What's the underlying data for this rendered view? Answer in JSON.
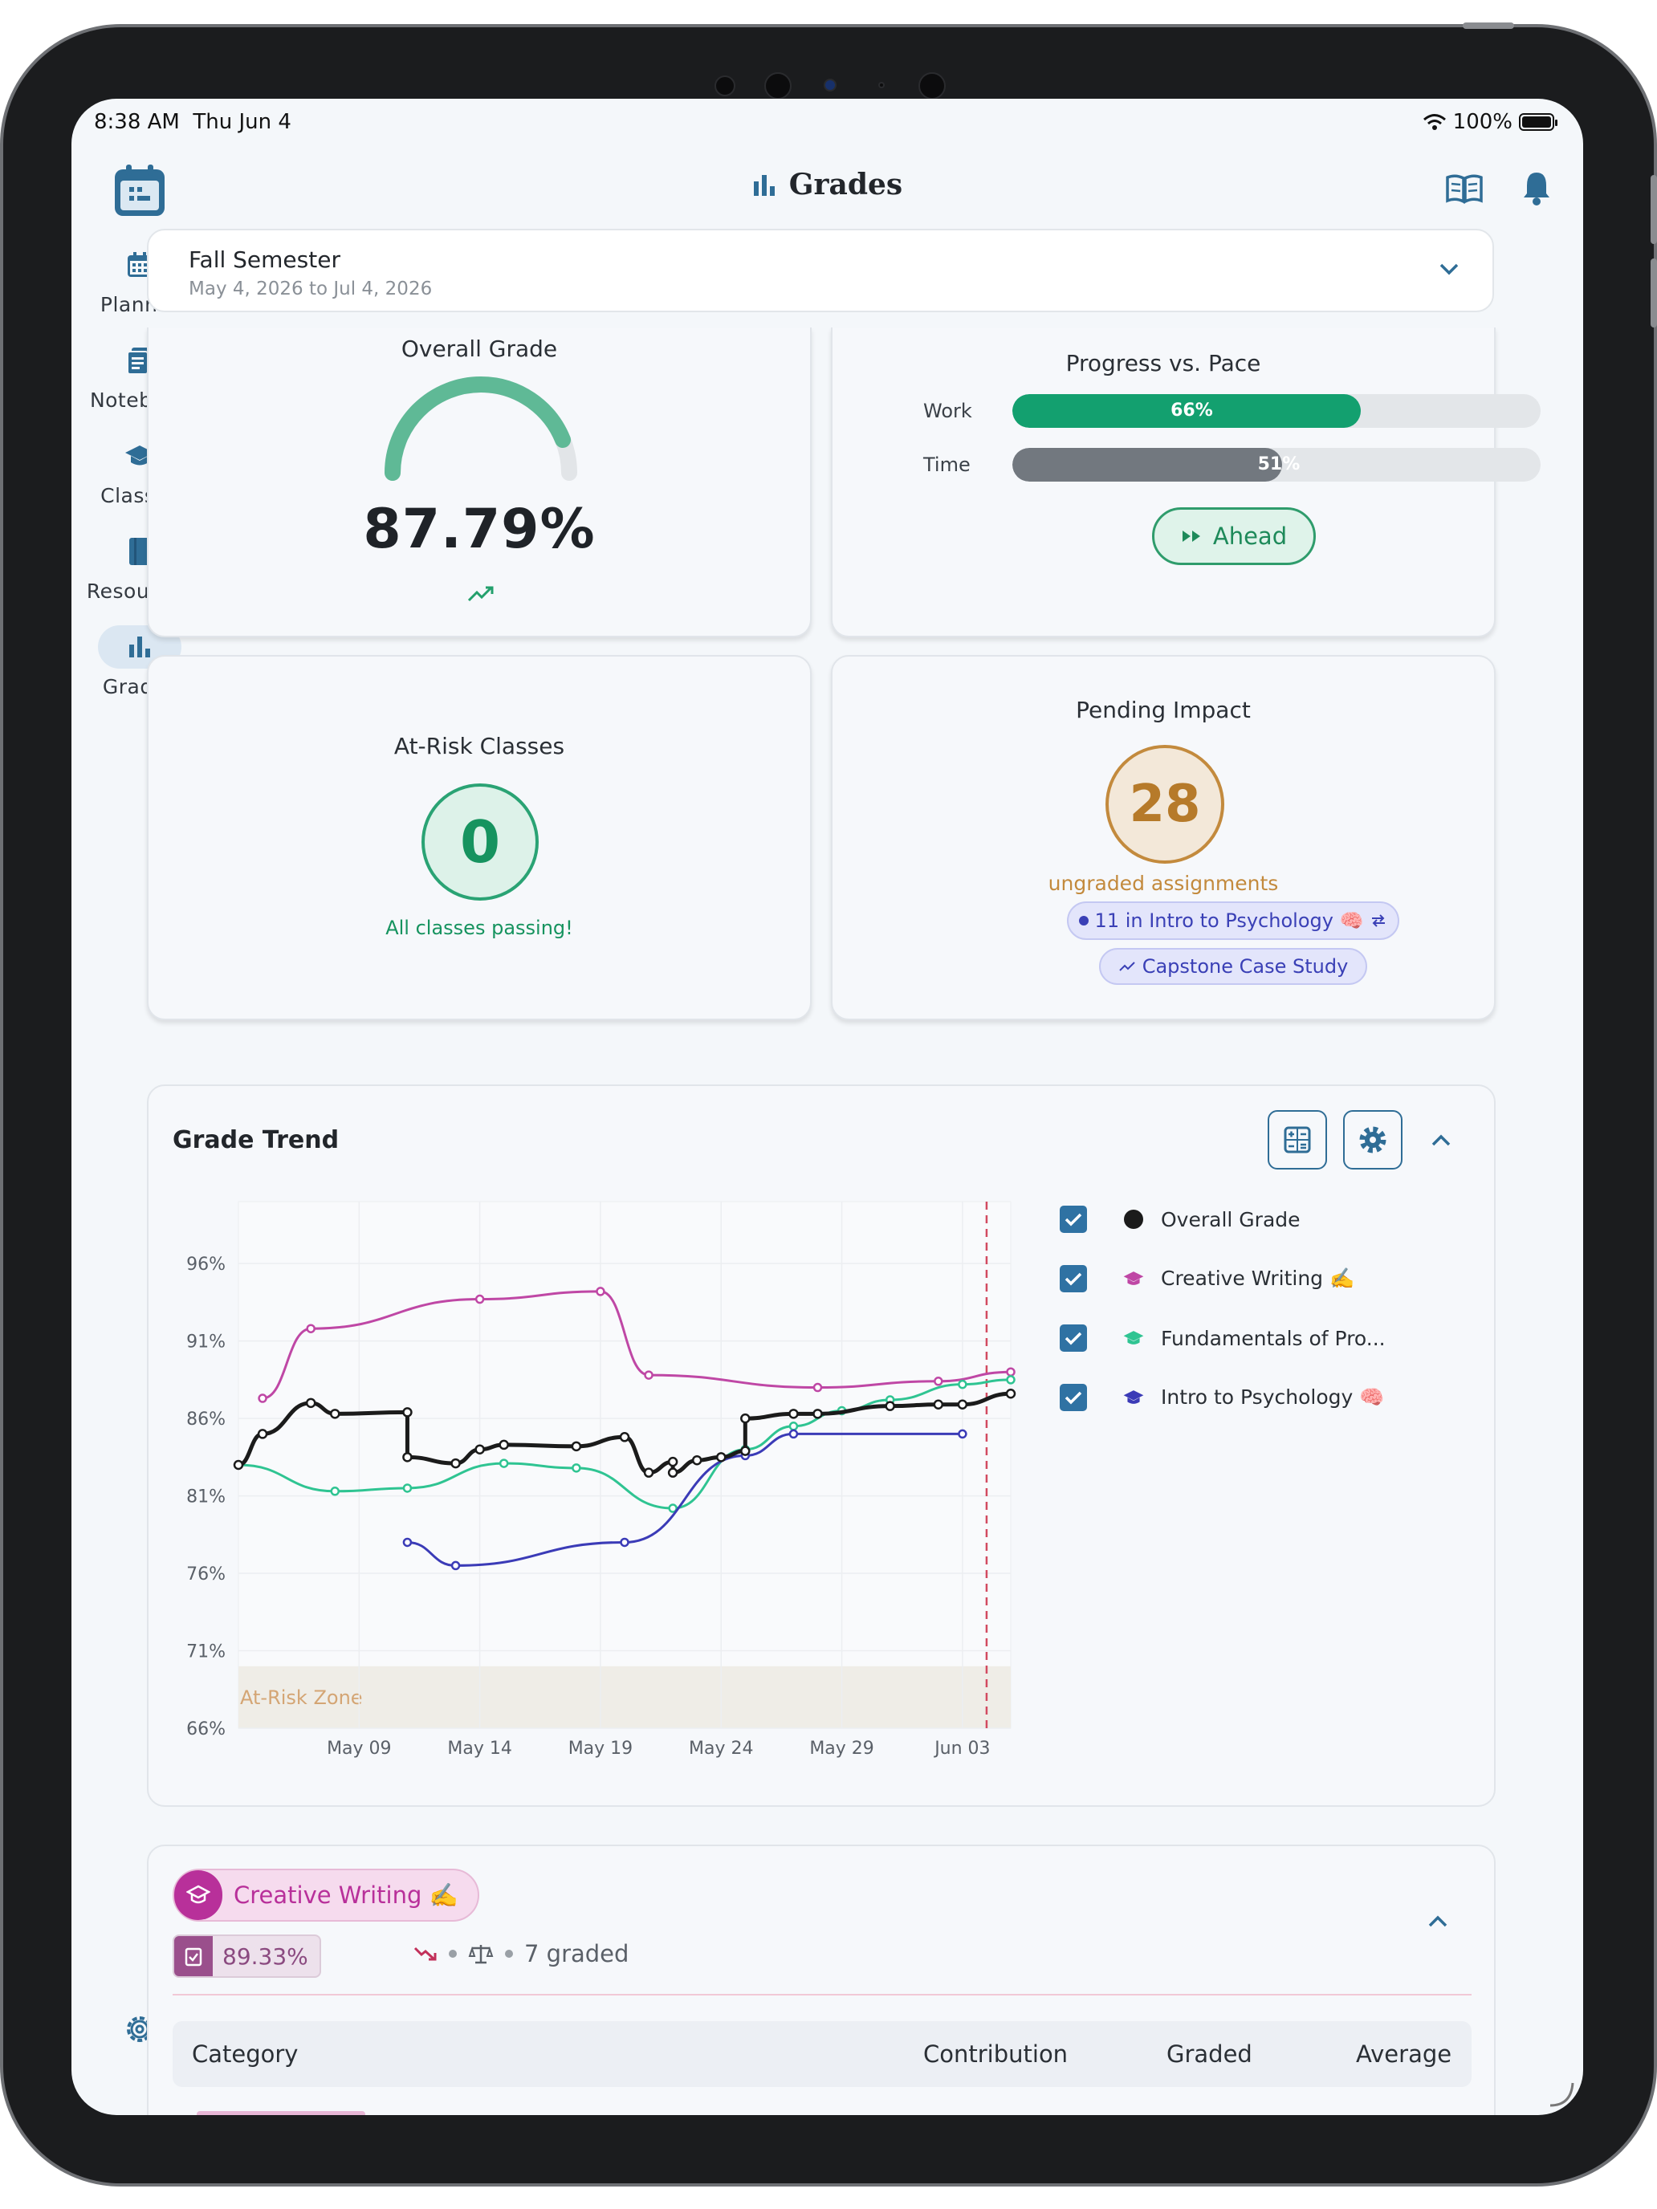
{
  "status_bar": {
    "time": "8:38 AM",
    "date": "Thu Jun 4",
    "battery": "100%"
  },
  "sidebar": {
    "items": [
      {
        "label": "Planner",
        "icon": "calendar-icon"
      },
      {
        "label": "Notebook",
        "icon": "notebook-icon"
      },
      {
        "label": "Classes",
        "icon": "graduation-cap-icon"
      },
      {
        "label": "Resources",
        "icon": "book-icon"
      },
      {
        "label": "Grades",
        "icon": "bar-chart-icon",
        "active": true
      }
    ]
  },
  "header": {
    "title": "Grades"
  },
  "semester": {
    "name": "Fall Semester",
    "range": "May 4, 2026 to Jul 4, 2026"
  },
  "overall": {
    "title": "Overall Grade",
    "value": "87.79%",
    "gauge_fraction": 0.8779
  },
  "progress": {
    "title": "Progress vs. Pace",
    "work_label": "Work",
    "work_value": "66%",
    "work_fraction": 0.66,
    "time_label": "Time",
    "time_value": "51%",
    "time_fraction": 0.51,
    "status": "Ahead"
  },
  "at_risk": {
    "title": "At-Risk Classes",
    "count": "0",
    "message": "All classes passing!"
  },
  "pending": {
    "title": "Pending Impact",
    "count": "28",
    "subtitle": "ungraded assignments",
    "chips": [
      "11 in Intro to Psychology 🧠",
      "Capstone Case Study"
    ]
  },
  "trend": {
    "title": "Grade Trend",
    "at_risk_zone_label": "At-Risk Zone",
    "legend": [
      {
        "label": "Overall Grade",
        "color": "#1b1b1b"
      },
      {
        "label": "Creative Writing ✍️",
        "color": "#bf47a5"
      },
      {
        "label": "Fundamentals of Pro...",
        "color": "#2fc492"
      },
      {
        "label": "Intro to Psychology 🧠",
        "color": "#3b3bb7"
      }
    ]
  },
  "chart_data": {
    "type": "line",
    "title": "Grade Trend",
    "xlabel": "",
    "ylabel": "",
    "x_ticks": [
      "May 09",
      "May 14",
      "May 19",
      "May 24",
      "May 29",
      "Jun 03"
    ],
    "y_ticks": [
      "96%",
      "91%",
      "86%",
      "81%",
      "76%",
      "71%",
      "66%"
    ],
    "xlim": [
      "2026-05-04",
      "2026-06-05"
    ],
    "ylim": [
      66,
      100
    ],
    "today": "2026-06-04",
    "at_risk_max": 70,
    "series": [
      {
        "name": "Overall Grade",
        "color": "#1b1b1b",
        "x": [
          "2026-05-04",
          "2026-05-05",
          "2026-05-07",
          "2026-05-08",
          "2026-05-11",
          "2026-05-11",
          "2026-05-13",
          "2026-05-14",
          "2026-05-15",
          "2026-05-18",
          "2026-05-20",
          "2026-05-21",
          "2026-05-22",
          "2026-05-22",
          "2026-05-23",
          "2026-05-24",
          "2026-05-25",
          "2026-05-25",
          "2026-05-27",
          "2026-05-28",
          "2026-05-31",
          "2026-06-02",
          "2026-06-03",
          "2026-06-05"
        ],
        "y": [
          83.0,
          85.0,
          87.0,
          86.3,
          86.4,
          83.5,
          83.1,
          84.0,
          84.3,
          84.2,
          84.8,
          82.5,
          83.2,
          82.5,
          83.3,
          83.5,
          83.9,
          86.0,
          86.3,
          86.3,
          86.8,
          86.9,
          86.9,
          87.6
        ]
      },
      {
        "name": "Creative Writing ✍️",
        "color": "#bf47a5",
        "x": [
          "2026-05-05",
          "2026-05-07",
          "2026-05-14",
          "2026-05-19",
          "2026-05-21",
          "2026-05-28",
          "2026-06-02",
          "2026-06-05"
        ],
        "y": [
          87.3,
          91.8,
          93.7,
          94.2,
          88.8,
          88.0,
          88.4,
          89.0
        ]
      },
      {
        "name": "Fundamentals of Pro...",
        "color": "#2fc492",
        "x": [
          "2026-05-04",
          "2026-05-08",
          "2026-05-11",
          "2026-05-15",
          "2026-05-18",
          "2026-05-22",
          "2026-05-25",
          "2026-05-27",
          "2026-05-29",
          "2026-05-31",
          "2026-06-03",
          "2026-06-05"
        ],
        "y": [
          83.0,
          81.3,
          81.5,
          83.1,
          82.8,
          80.2,
          84.0,
          85.5,
          86.5,
          87.2,
          88.2,
          88.5
        ]
      },
      {
        "name": "Intro to Psychology 🧠",
        "color": "#3b3bb7",
        "x": [
          "2026-05-11",
          "2026-05-13",
          "2026-05-20",
          "2026-05-25",
          "2026-05-27",
          "2026-06-03"
        ],
        "y": [
          78.0,
          76.5,
          78.0,
          83.6,
          85.0,
          85.0
        ]
      }
    ]
  },
  "class_detail": {
    "name": "Creative Writing ✍️",
    "score": "89.33%",
    "graded": "7 graded",
    "columns": {
      "category": "Category",
      "contribution": "Contribution",
      "graded": "Graded",
      "average": "Average"
    }
  }
}
